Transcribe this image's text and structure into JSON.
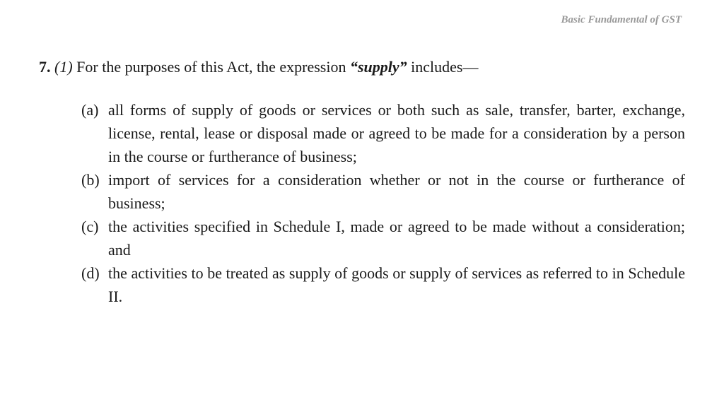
{
  "header": {
    "title": "Basic Fundamental of GST"
  },
  "content": {
    "section_number": "7.",
    "subsection": "(1)",
    "intro_text_before": " For the purposes of this Act, the expression ",
    "supply_quoted": "“supply”",
    "intro_text_after": " includes—",
    "items": [
      {
        "marker": "(a)",
        "text": "all forms of supply of goods or services or both such as sale, transfer, barter, exchange, license, rental, lease or disposal made or agreed to be made for a consideration by a person in the course or furtherance of business;"
      },
      {
        "marker": "(b)",
        "text": "import of services for a consideration whether or not in the course or furtherance of business;"
      },
      {
        "marker": "(c)",
        "text": "the activities specified in Schedule I, made or agreed to be made without a consideration; and"
      },
      {
        "marker": "(d)",
        "text": "the activities to be treated as supply of goods or supply of services as referred to in Schedule II."
      }
    ]
  },
  "styling": {
    "background_color": "#ffffff",
    "text_color": "#1a1a1a",
    "header_color": "#999999",
    "body_font_size": 22,
    "header_font_size": 15,
    "font_family": "Georgia, Times New Roman, serif"
  }
}
